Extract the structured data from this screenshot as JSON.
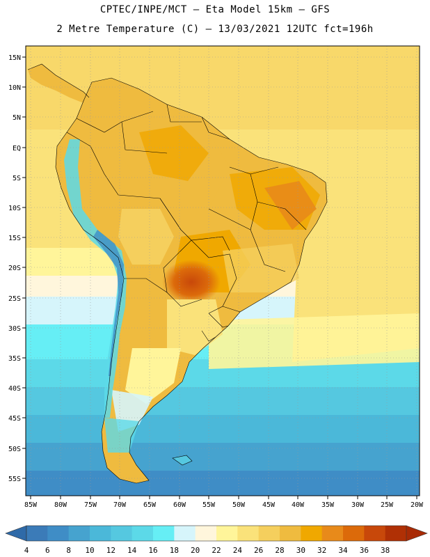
{
  "header": {
    "line1": "CPTEC/INPE/MCT –  Eta Model 15km – GFS",
    "line2": "2 Metre Temperature (C) – 13/03/2021 12UTC fct=196h"
  },
  "lat_labels": [
    "15N",
    "10N",
    "5N",
    "EQ",
    "5S",
    "10S",
    "15S",
    "20S",
    "25S",
    "30S",
    "35S",
    "40S",
    "45S",
    "50S",
    "55S"
  ],
  "lon_labels": [
    "85W",
    "80W",
    "75W",
    "70W",
    "65W",
    "60W",
    "55W",
    "50W",
    "45W",
    "40W",
    "35W",
    "30W",
    "25W",
    "20W"
  ],
  "colorbar": {
    "ticks": [
      "4",
      "6",
      "8",
      "10",
      "12",
      "14",
      "16",
      "18",
      "20",
      "22",
      "24",
      "26",
      "28",
      "30",
      "32",
      "34",
      "36",
      "38"
    ],
    "colors": [
      "#3b7bb8",
      "#3f8dc6",
      "#46a3cf",
      "#4bb8d9",
      "#55c8e0",
      "#5cd9e8",
      "#66eef5",
      "#d6f5fb",
      "#fff6dc",
      "#fff59a",
      "#fae27a",
      "#f5cf5d",
      "#efbb3f",
      "#f0a800",
      "#e88a1a",
      "#dc6a0a",
      "#c8480a",
      "#b03005"
    ]
  }
}
